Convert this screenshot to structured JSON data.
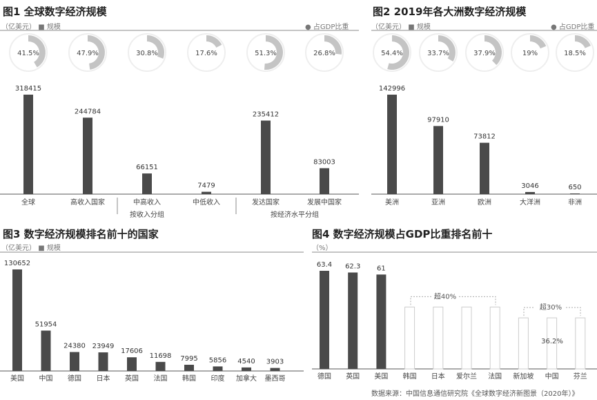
{
  "chart_data": [
    {
      "type": "bar",
      "title": "图1 全球数字经济规模",
      "unit": "（亿美元）",
      "legend": [
        "■ 规模",
        "● 占GDP比重"
      ],
      "categories": [
        "全球",
        "高收入国家",
        "中高收入",
        "中低收入",
        "发达国家",
        "发展中国家"
      ],
      "values": [
        318415,
        244784,
        66151,
        7479,
        235412,
        83003
      ],
      "gdp_share": [
        41.5,
        47.9,
        30.8,
        17.6,
        51.3,
        26.8
      ],
      "gdp_share_labels": [
        "41.5%",
        "47.9%",
        "30.8%",
        "17.6%",
        "51.3%",
        "26.8%"
      ],
      "group_labels": [
        "按收入分组",
        "按经济水平分组"
      ]
    },
    {
      "type": "bar",
      "title": "图2 2019年各大洲数字经济规模",
      "unit": "（亿美元）",
      "legend": [
        "■ 规模",
        "● 占GDP比重"
      ],
      "categories": [
        "美洲",
        "亚洲",
        "欧洲",
        "大洋洲",
        "非洲"
      ],
      "values": [
        142996,
        97910,
        73812,
        3046,
        650
      ],
      "gdp_share": [
        54.4,
        33.7,
        37.9,
        19,
        18.5
      ],
      "gdp_share_labels": [
        "54.4%",
        "33.7%",
        "37.9%",
        "19%",
        "18.5%"
      ]
    },
    {
      "type": "bar",
      "title": "图3 数字经济规模排名前十的国家",
      "unit": "（亿美元）",
      "legend": [
        "■ 规模"
      ],
      "categories": [
        "美国",
        "中国",
        "德国",
        "日本",
        "英国",
        "法国",
        "韩国",
        "印度",
        "加拿大",
        "墨西哥"
      ],
      "values": [
        130652,
        51954,
        24380,
        23949,
        17606,
        11698,
        7995,
        5856,
        4540,
        3903
      ]
    },
    {
      "type": "bar",
      "title": "图4 数字经济规模占GDP比重排名前十",
      "unit": "（%）",
      "categories": [
        "德国",
        "英国",
        "美国",
        "韩国",
        "日本",
        "爱尔兰",
        "法国",
        "新加坡",
        "中国",
        "芬兰"
      ],
      "values": [
        63.4,
        62.3,
        61,
        null,
        null,
        null,
        null,
        null,
        36.2,
        null
      ],
      "value_labels": [
        "63.4",
        "62.3",
        "61",
        "",
        "",
        "",
        "",
        "",
        "36.2%",
        ""
      ],
      "group_annotations": [
        "超40%",
        "超30%"
      ],
      "group_levels": [
        40,
        33
      ],
      "source": "数据来源：中国信息通信研究院《全球数字经济新图景（2020年）》"
    }
  ],
  "colors": {
    "bar": "#4a4a4a",
    "donut": "#c4c4c4",
    "axis": "#555"
  }
}
